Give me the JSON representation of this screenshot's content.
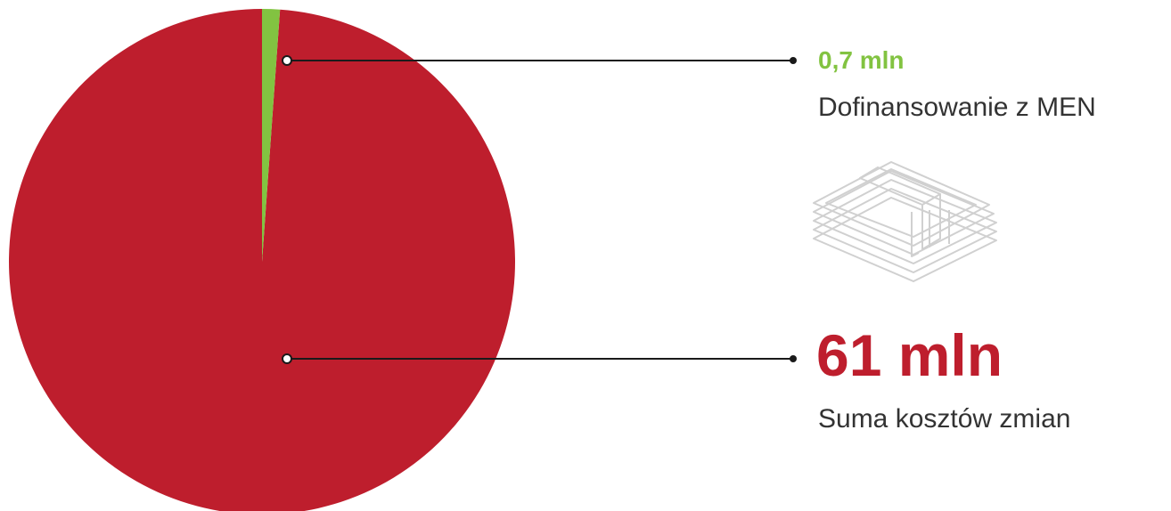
{
  "chart_data": {
    "type": "pie",
    "slices": [
      {
        "value_label": "0,7 mln",
        "label": "Dofinansowanie z MEN",
        "value": 0.7,
        "color": "#82c341"
      },
      {
        "value_label": "61 mln",
        "label": "Suma kosztów zmian",
        "value": 61,
        "color": "#be1e2d"
      }
    ],
    "start": "top",
    "direction": "clockwise"
  },
  "colors": {
    "accent_green": "#82c341",
    "accent_red": "#be1e2d",
    "leader_line": "#1a1a1a",
    "icon_stroke": "#d0d0d0"
  },
  "icon": "banknote-stack-icon"
}
